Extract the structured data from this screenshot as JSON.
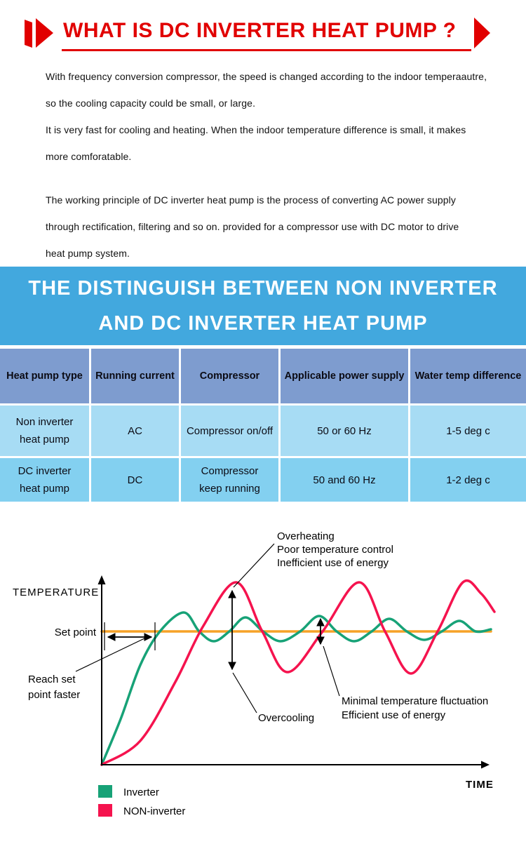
{
  "header": {
    "title": "WHAT IS DC INVERTER HEAT PUMP ?",
    "accent_color": "#e10000"
  },
  "intro": {
    "p1": [
      "With frequency conversion compressor, the speed is changed according to the indoor temperaautre,",
      "so the cooling capacity could be small, or large.",
      "It is very fast for cooling and heating. When the indoor temperature difference is small, it makes",
      "more comforatable."
    ],
    "p2": [
      "The working principle of DC inverter heat pump is the process of converting AC power supply",
      "through rectification, filtering and so on. provided for a compressor use with DC motor to drive",
      "heat pump system."
    ]
  },
  "banner": {
    "line1": "THE DISTINGUISH BETWEEN NON INVERTER",
    "line2": "AND DC INVERTER HEAT PUMP",
    "bg": "#42a8de"
  },
  "table": {
    "headers": [
      "Heat pump type",
      "Running current",
      "Compressor",
      "Applicable power supply",
      "Water temp difference"
    ],
    "rows": [
      {
        "cells": [
          [
            "Non inverter",
            "heat pump"
          ],
          [
            "AC"
          ],
          [
            "Compressor on/off"
          ],
          [
            "50 or 60 Hz"
          ],
          [
            "1-5 deg c"
          ]
        ]
      },
      {
        "cells": [
          [
            "DC inverter",
            "heat pump"
          ],
          [
            "DC"
          ],
          [
            "Compressor",
            "keep running"
          ],
          [
            "50 and 60 Hz"
          ],
          [
            "1-2 deg c"
          ]
        ]
      }
    ],
    "colors": {
      "header_bg": "#7e9ccf",
      "row1_bg": "#a7dcf4",
      "row2_bg": "#83d0f0"
    }
  },
  "chart_data": {
    "type": "line",
    "title": "Temperature control: inverter vs non-inverter heat pump (schematic)",
    "xlabel": "TIME",
    "ylabel": "TEMPERATURE",
    "set_point_label": "Set point",
    "reach_label_lines": [
      "Reach set",
      "point faster"
    ],
    "overheating_lines": [
      "Overheating",
      "Poor temperature control",
      "Inefficient use of energy"
    ],
    "overcooling_label": "Overcooling",
    "minimal_lines": [
      "Minimal temperature fluctuation",
      "Efficient use of energy"
    ],
    "legend_position": "bottom-left",
    "series": [
      {
        "name": "Set point",
        "color": "#f6a227",
        "points": [
          [
            145,
            170
          ],
          [
            700,
            170
          ]
        ]
      },
      {
        "name": "Inverter",
        "color": "#17a277",
        "points": [
          [
            145,
            360
          ],
          [
            172,
            295
          ],
          [
            200,
            218
          ],
          [
            228,
            170
          ],
          [
            262,
            143
          ],
          [
            284,
            170
          ],
          [
            305,
            184
          ],
          [
            327,
            170
          ],
          [
            350,
            150
          ],
          [
            375,
            170
          ],
          [
            400,
            184
          ],
          [
            428,
            170
          ],
          [
            455,
            148
          ],
          [
            480,
            170
          ],
          [
            505,
            184
          ],
          [
            530,
            170
          ],
          [
            555,
            152
          ],
          [
            580,
            170
          ],
          [
            605,
            182
          ],
          [
            630,
            170
          ],
          [
            655,
            155
          ],
          [
            678,
            170
          ],
          [
            700,
            167
          ]
        ]
      },
      {
        "name": "NON-inverter",
        "color": "#f5134e",
        "points": [
          [
            145,
            360
          ],
          [
            200,
            326
          ],
          [
            250,
            242
          ],
          [
            290,
            162
          ],
          [
            337,
            100
          ],
          [
            374,
            170
          ],
          [
            410,
            228
          ],
          [
            460,
            170
          ],
          [
            512,
            100
          ],
          [
            549,
            170
          ],
          [
            586,
            230
          ],
          [
            624,
            170
          ],
          [
            660,
            100
          ],
          [
            686,
            116
          ],
          [
            705,
            142
          ]
        ]
      }
    ]
  }
}
